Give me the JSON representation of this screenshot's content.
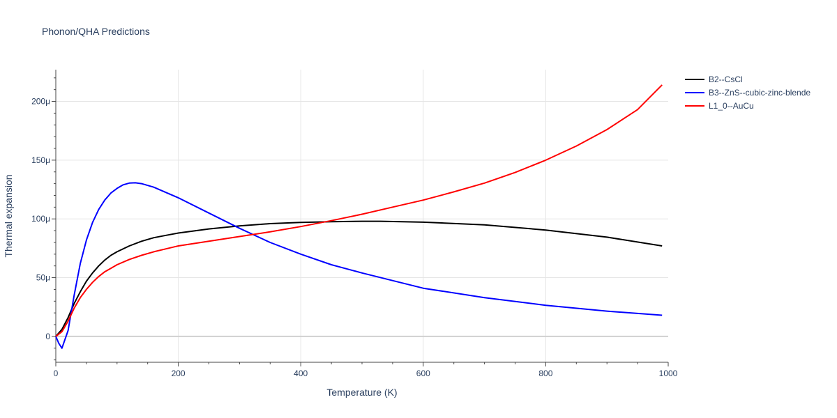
{
  "chart_data": {
    "type": "line",
    "title": "Phonon/QHA Predictions",
    "xlabel": "Temperature (K)",
    "ylabel": "Thermal expansion",
    "xlim": [
      0,
      1000
    ],
    "ylim": [
      -22,
      227
    ],
    "x_ticks": [
      0,
      200,
      400,
      600,
      800,
      1000
    ],
    "x_tick_labels": [
      "0",
      "200",
      "400",
      "600",
      "800",
      "1000"
    ],
    "y_ticks": [
      0,
      50,
      100,
      150,
      200
    ],
    "y_tick_labels": [
      "0",
      "50μ",
      "100μ",
      "150μ",
      "200μ"
    ],
    "y_unit_note": "values in units of 1e-6 (μ)",
    "grid": true,
    "legend_position": "top-right, outside plot",
    "series": [
      {
        "name": "B2--CsCl",
        "color": "#000000",
        "x": [
          0,
          10,
          20,
          30,
          40,
          50,
          60,
          70,
          80,
          90,
          100,
          120,
          140,
          160,
          180,
          200,
          250,
          300,
          350,
          400,
          450,
          500,
          530,
          600,
          700,
          800,
          900,
          990
        ],
        "y": [
          0,
          6,
          16,
          28,
          38,
          47,
          54,
          60,
          65,
          69,
          72,
          77,
          81,
          84,
          86,
          88,
          91.5,
          94,
          96,
          97,
          97.6,
          98,
          98,
          97.2,
          95,
          90.5,
          84.5,
          77
        ]
      },
      {
        "name": "B3--ZnS--cubic-zinc-blende",
        "color": "#0000ff",
        "x": [
          0,
          5,
          10,
          20,
          30,
          40,
          50,
          60,
          70,
          80,
          90,
          100,
          110,
          120,
          130,
          140,
          160,
          180,
          200,
          250,
          300,
          350,
          400,
          450,
          500,
          600,
          700,
          800,
          900,
          990
        ],
        "y": [
          0,
          -6,
          -10,
          5,
          35,
          62,
          82,
          97,
          108,
          116,
          122,
          126,
          129,
          130.5,
          130.7,
          130,
          127,
          122.5,
          118,
          105,
          92,
          80,
          70,
          61,
          54,
          41,
          33,
          26.5,
          21.5,
          18
        ]
      },
      {
        "name": "L1_0--AuCu",
        "color": "#ff0000",
        "x": [
          0,
          10,
          20,
          30,
          40,
          50,
          60,
          70,
          80,
          90,
          100,
          120,
          140,
          160,
          180,
          200,
          250,
          300,
          350,
          400,
          450,
          500,
          550,
          600,
          650,
          700,
          750,
          800,
          850,
          900,
          950,
          990
        ],
        "y": [
          0,
          4,
          13,
          24,
          33,
          40,
          46,
          51,
          55,
          58,
          61,
          65.5,
          69,
          72,
          74.5,
          77,
          81,
          85,
          89,
          93.5,
          98.5,
          104,
          110,
          116,
          123,
          130.5,
          139.5,
          150,
          162,
          176,
          193,
          214
        ]
      }
    ]
  }
}
